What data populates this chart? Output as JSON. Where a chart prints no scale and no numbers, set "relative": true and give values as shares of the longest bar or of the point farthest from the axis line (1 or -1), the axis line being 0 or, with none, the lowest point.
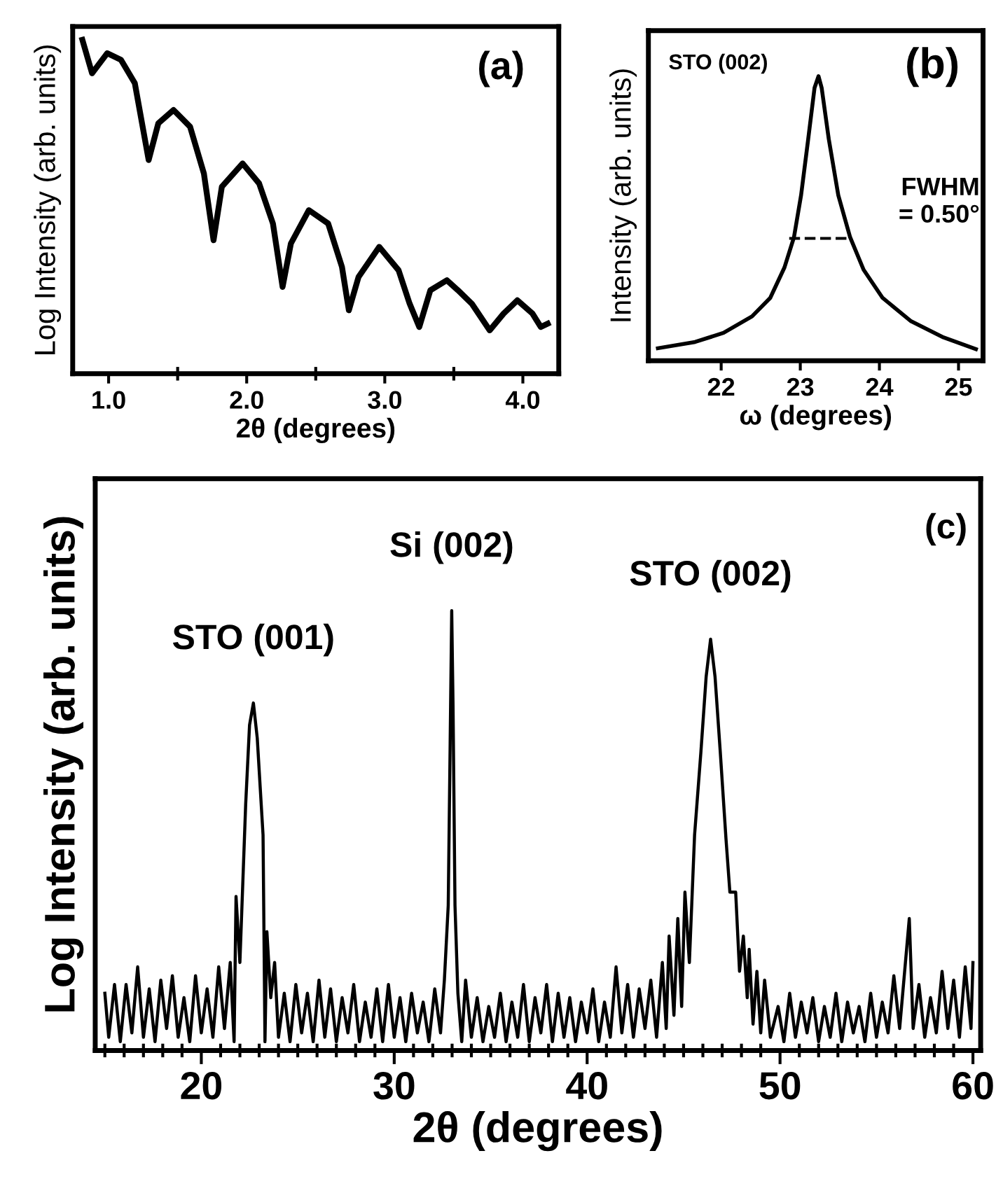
{
  "chart_data": [
    {
      "type": "line",
      "xlabel": "2θ (degrees)",
      "ylabel": "Log Intensity (arb. units)",
      "relative": true,
      "annotations": [
        "(a)"
      ],
      "xlim": [
        0.74,
        4.26
      ],
      "xticks": [
        {
          "value": 1.0,
          "label": "1.0"
        },
        {
          "value": 1.5,
          "label": null
        },
        {
          "value": 2.0,
          "label": "2.0"
        },
        {
          "value": 2.5,
          "label": null
        },
        {
          "value": 3.0,
          "label": "3.0"
        },
        {
          "value": 3.5,
          "label": null
        },
        {
          "value": 4.0,
          "label": "4.0"
        }
      ],
      "grid": false,
      "legend": false,
      "marker": "none",
      "line_style": "solid",
      "series": [
        {
          "color": "#000000",
          "x": [
            0.81,
            0.88,
            0.99,
            1.09,
            1.19,
            1.29,
            1.36,
            1.47,
            1.59,
            1.69,
            1.76,
            1.82,
            1.97,
            2.09,
            2.19,
            2.26,
            2.32,
            2.45,
            2.59,
            2.69,
            2.74,
            2.81,
            2.96,
            3.1,
            3.18,
            3.25,
            3.33,
            3.45,
            3.53,
            3.63,
            3.76,
            3.86,
            3.96,
            4.07,
            4.13,
            4.18
          ],
          "values": [
            1.0,
            0.9,
            0.96,
            0.94,
            0.87,
            0.64,
            0.75,
            0.79,
            0.74,
            0.6,
            0.4,
            0.56,
            0.63,
            0.57,
            0.45,
            0.26,
            0.39,
            0.49,
            0.45,
            0.32,
            0.19,
            0.29,
            0.38,
            0.31,
            0.21,
            0.14,
            0.25,
            0.28,
            0.25,
            0.21,
            0.13,
            0.18,
            0.22,
            0.18,
            0.14,
            0.15
          ]
        }
      ]
    },
    {
      "type": "line",
      "xlabel": "ω (degrees)",
      "ylabel": "Intensity (arb. units)",
      "relative": true,
      "annotations": [
        "STO (002)",
        "(b)",
        "FWHM\n= 0.50°"
      ],
      "xlim": [
        21.08,
        25.31
      ],
      "xticks": [
        22,
        23,
        24,
        25
      ],
      "grid": false,
      "legend": false,
      "marker": "none",
      "line_style": "solid",
      "series": [
        {
          "color": "#000000",
          "x": [
            21.2,
            21.67,
            22.03,
            22.39,
            22.62,
            22.8,
            22.92,
            23.01,
            23.1,
            23.18,
            23.23,
            23.27,
            23.36,
            23.48,
            23.63,
            23.8,
            24.04,
            24.4,
            24.81,
            25.22
          ],
          "values": [
            0.044,
            0.066,
            0.098,
            0.156,
            0.221,
            0.328,
            0.434,
            0.582,
            0.779,
            0.959,
            1.0,
            0.959,
            0.779,
            0.582,
            0.434,
            0.32,
            0.221,
            0.139,
            0.082,
            0.041
          ]
        },
        {
          "type": "line",
          "color": "#000000",
          "line_style": "dashed",
          "x": [
            22.86,
            23.63
          ],
          "values": [
            0.43,
            0.43
          ]
        }
      ]
    },
    {
      "type": "line",
      "xlabel": "2θ (degrees)",
      "ylabel": "Log Intensity (arb. units)",
      "relative": true,
      "annotations": [
        "(c)",
        {
          "text": "STO (001)",
          "x": 22.7,
          "y": 0.79
        },
        {
          "text": "Si (002)",
          "x": 32.98,
          "y": 1.0
        },
        {
          "text": "STO (002)",
          "x": 46.4,
          "y": 0.935
        }
      ],
      "xlim": [
        14.5,
        60.4
      ],
      "xticks": [
        {
          "value": 15,
          "label": null
        },
        {
          "value": 16,
          "label": null
        },
        {
          "value": 17,
          "label": null
        },
        {
          "value": 18,
          "label": null
        },
        {
          "value": 19,
          "label": null
        },
        20,
        {
          "value": 21,
          "label": null
        },
        {
          "value": 22,
          "label": null
        },
        {
          "value": 23,
          "label": null
        },
        {
          "value": 24,
          "label": null
        },
        {
          "value": 25,
          "label": null
        },
        {
          "value": 26,
          "label": null
        },
        {
          "value": 27,
          "label": null
        },
        {
          "value": 28,
          "label": null
        },
        {
          "value": 29,
          "label": null
        },
        30,
        {
          "value": 31,
          "label": null
        },
        {
          "value": 32,
          "label": null
        },
        {
          "value": 33,
          "label": null
        },
        {
          "value": 34,
          "label": null
        },
        {
          "value": 35,
          "label": null
        },
        {
          "value": 36,
          "label": null
        },
        {
          "value": 37,
          "label": null
        },
        {
          "value": 38,
          "label": null
        },
        {
          "value": 39,
          "label": null
        },
        40,
        {
          "value": 41,
          "label": null
        },
        {
          "value": 42,
          "label": null
        },
        {
          "value": 43,
          "label": null
        },
        {
          "value": 44,
          "label": null
        },
        {
          "value": 45,
          "label": null
        },
        {
          "value": 46,
          "label": null
        },
        {
          "value": 47,
          "label": null
        },
        {
          "value": 48,
          "label": null
        },
        {
          "value": 49,
          "label": null
        },
        50,
        {
          "value": 51,
          "label": null
        },
        {
          "value": 52,
          "label": null
        },
        {
          "value": 53,
          "label": null
        },
        {
          "value": 54,
          "label": null
        },
        {
          "value": 55,
          "label": null
        },
        {
          "value": 56,
          "label": null
        },
        {
          "value": 57,
          "label": null
        },
        {
          "value": 58,
          "label": null
        },
        {
          "value": 59,
          "label": null
        },
        60
      ],
      "grid": false,
      "legend": false,
      "marker": "none",
      "line_style": "solid",
      "series": [
        {
          "color": "#000000",
          "x": [
            15.0,
            15.2,
            15.5,
            15.8,
            16.1,
            16.4,
            16.7,
            17.0,
            17.3,
            17.6,
            17.9,
            18.2,
            18.5,
            18.8,
            19.1,
            19.4,
            19.7,
            20.0,
            20.3,
            20.6,
            20.9,
            21.2,
            21.5,
            21.7,
            21.8,
            22.0,
            22.3,
            22.5,
            22.7,
            22.9,
            23.2,
            23.3,
            23.4,
            23.6,
            23.8,
            24.0,
            24.3,
            24.6,
            24.9,
            25.2,
            25.5,
            25.8,
            26.1,
            26.4,
            26.7,
            27.0,
            27.3,
            27.6,
            27.9,
            28.2,
            28.5,
            28.8,
            29.1,
            29.4,
            29.7,
            30.0,
            30.3,
            30.6,
            30.9,
            31.2,
            31.5,
            31.8,
            32.1,
            32.4,
            32.6,
            32.8,
            32.9,
            32.98,
            33.05,
            33.15,
            33.3,
            33.5,
            33.7,
            34.0,
            34.3,
            34.6,
            34.9,
            35.2,
            35.5,
            35.8,
            36.1,
            36.4,
            36.7,
            37.0,
            37.3,
            37.6,
            37.9,
            38.2,
            38.5,
            38.8,
            39.1,
            39.4,
            39.7,
            40.0,
            40.3,
            40.6,
            40.9,
            41.2,
            41.5,
            41.8,
            42.1,
            42.4,
            42.7,
            43.0,
            43.3,
            43.6,
            43.9,
            44.1,
            44.25,
            44.5,
            44.7,
            44.9,
            45.07,
            45.3,
            45.57,
            45.9,
            46.17,
            46.4,
            46.63,
            46.9,
            47.2,
            47.4,
            47.7,
            47.9,
            48.1,
            48.3,
            48.4,
            48.6,
            48.8,
            49.0,
            49.2,
            49.5,
            49.9,
            50.2,
            50.5,
            50.8,
            51.1,
            51.4,
            51.7,
            52.0,
            52.3,
            52.6,
            52.9,
            53.2,
            53.5,
            53.8,
            54.1,
            54.4,
            54.7,
            55.0,
            55.3,
            55.6,
            55.9,
            56.2,
            56.5,
            56.7,
            56.9,
            57.2,
            57.5,
            57.8,
            58.1,
            58.4,
            58.7,
            59.0,
            59.3,
            59.6,
            59.9,
            60.0
          ],
          "values": [
            0.13,
            0.03,
            0.15,
            0.02,
            0.15,
            0.04,
            0.19,
            0.03,
            0.14,
            0.02,
            0.16,
            0.05,
            0.17,
            0.03,
            0.12,
            0.02,
            0.17,
            0.04,
            0.14,
            0.03,
            0.19,
            0.05,
            0.2,
            0.02,
            0.35,
            0.2,
            0.56,
            0.74,
            0.79,
            0.71,
            0.49,
            0.02,
            0.27,
            0.12,
            0.2,
            0.03,
            0.13,
            0.02,
            0.15,
            0.04,
            0.13,
            0.02,
            0.16,
            0.03,
            0.14,
            0.02,
            0.12,
            0.04,
            0.15,
            0.02,
            0.11,
            0.03,
            0.14,
            0.02,
            0.15,
            0.03,
            0.12,
            0.02,
            0.13,
            0.04,
            0.11,
            0.02,
            0.14,
            0.04,
            0.16,
            0.33,
            0.7,
            1.0,
            0.78,
            0.33,
            0.13,
            0.02,
            0.16,
            0.03,
            0.12,
            0.02,
            0.1,
            0.03,
            0.13,
            0.02,
            0.11,
            0.03,
            0.15,
            0.02,
            0.12,
            0.04,
            0.15,
            0.02,
            0.13,
            0.03,
            0.12,
            0.02,
            0.11,
            0.04,
            0.14,
            0.02,
            0.11,
            0.03,
            0.19,
            0.04,
            0.15,
            0.03,
            0.14,
            0.05,
            0.16,
            0.03,
            0.2,
            0.05,
            0.26,
            0.08,
            0.3,
            0.1,
            0.36,
            0.2,
            0.49,
            0.68,
            0.85,
            0.935,
            0.85,
            0.68,
            0.48,
            0.36,
            0.36,
            0.18,
            0.26,
            0.12,
            0.23,
            0.06,
            0.18,
            0.04,
            0.16,
            0.03,
            0.1,
            0.02,
            0.13,
            0.03,
            0.11,
            0.04,
            0.12,
            0.02,
            0.1,
            0.03,
            0.13,
            0.02,
            0.11,
            0.04,
            0.1,
            0.02,
            0.13,
            0.03,
            0.11,
            0.04,
            0.17,
            0.05,
            0.2,
            0.3,
            0.05,
            0.15,
            0.03,
            0.12,
            0.04,
            0.18,
            0.05,
            0.16,
            0.03,
            0.19,
            0.05,
            0.2
          ]
        }
      ]
    }
  ]
}
